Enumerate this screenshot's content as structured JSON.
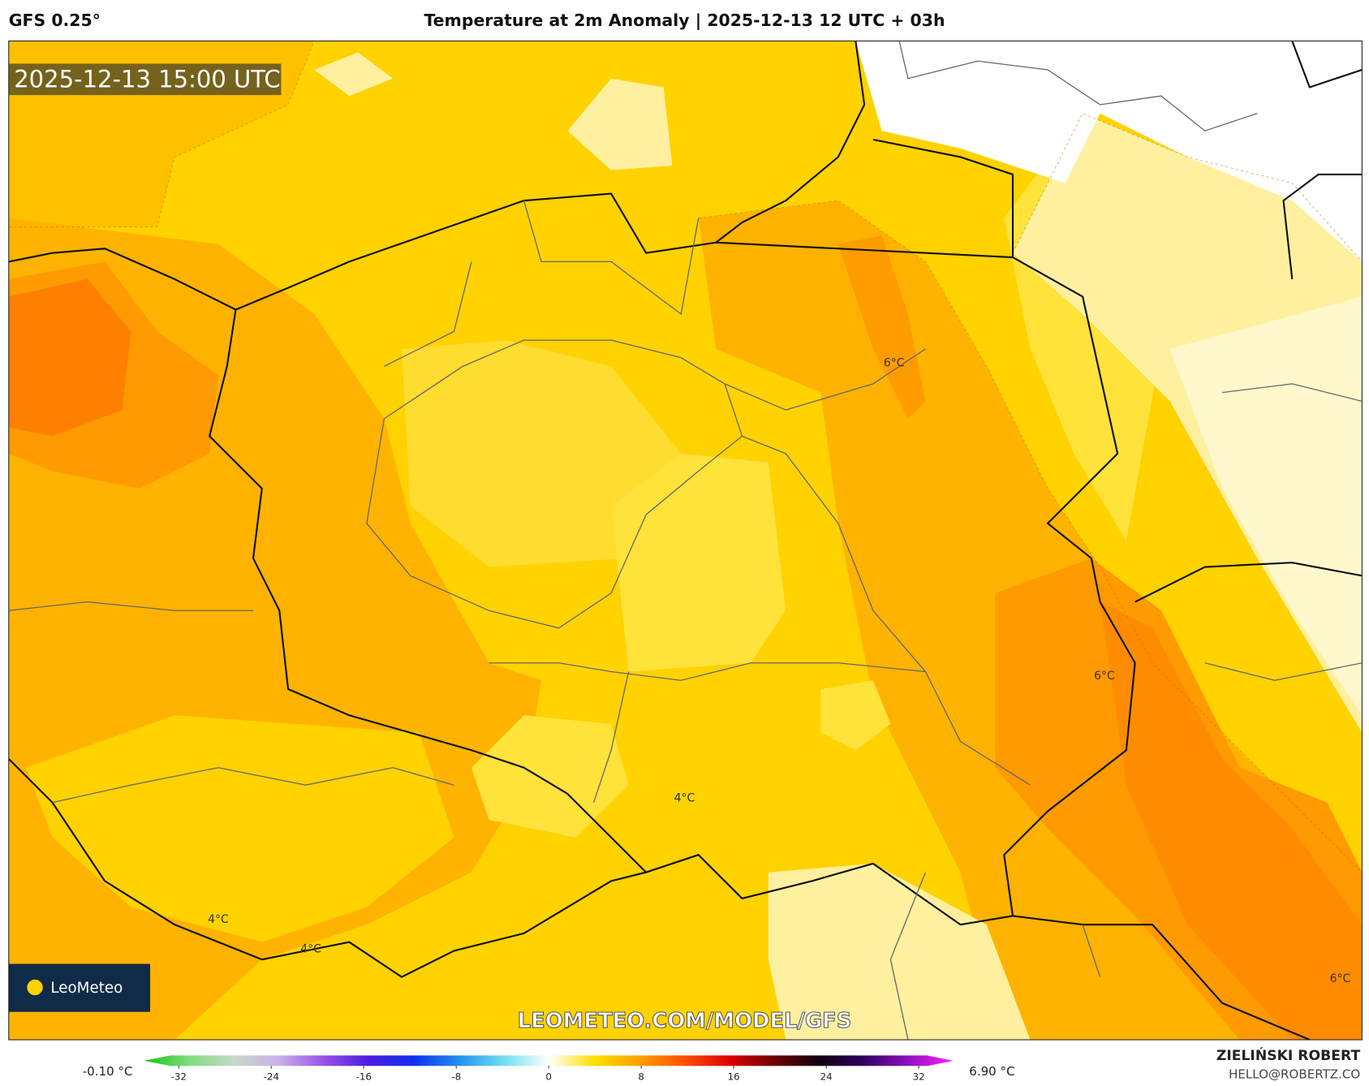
{
  "header": {
    "model": "GFS 0.25°",
    "title": "Temperature at 2m Anomaly | 2025-12-13 12 UTC + 03h"
  },
  "map": {
    "timestamp": "2025-12-13 15:00 UTC",
    "contour_labels": [
      "6°C",
      "6°C",
      "4°C",
      "4°C",
      "4°C",
      "6°C"
    ],
    "logo": "LeoMeteo",
    "watermark": "LEOMETEO.COM/MODEL/GFS"
  },
  "colorbar": {
    "min_label": "-0.10 °C",
    "max_label": "6.90 °C",
    "range": [
      -35,
      35
    ],
    "ticks": [
      -32,
      -24,
      -16,
      -8,
      0,
      8,
      16,
      24,
      32
    ],
    "colors": [
      "#12c412",
      "#7fdc7f",
      "#c8d8c8",
      "#c9b0ea",
      "#9a50e8",
      "#4a1ce0",
      "#1030f0",
      "#2090f0",
      "#70e0f0",
      "#ffffff",
      "#ffe000",
      "#ffa000",
      "#ff5000",
      "#e00000",
      "#700000",
      "#100010",
      "#300060",
      "#9010c0",
      "#ff20ff"
    ]
  },
  "footer": {
    "author": "ZIELIŃSKI ROBERT",
    "email": "HELLO@ROBERTZ.CO"
  }
}
